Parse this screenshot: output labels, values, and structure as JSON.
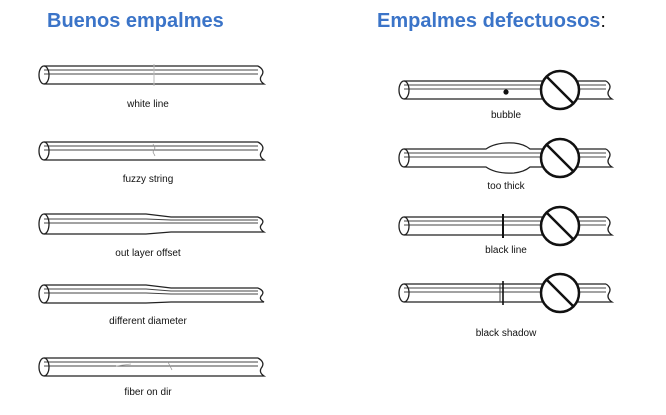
{
  "good": {
    "title": "Buenos empalmes",
    "items": [
      {
        "label": "white line",
        "defect": "white-line"
      },
      {
        "label": "fuzzy string",
        "defect": "fuzzy-string"
      },
      {
        "label": "out layer offset",
        "defect": "out-layer-offset"
      },
      {
        "label": "different diameter",
        "defect": "different-diameter"
      },
      {
        "label": "fiber on dir",
        "defect": "fiber-on-dir"
      }
    ]
  },
  "bad": {
    "title": "Empalmes defectuosos",
    "title_suffix": ":",
    "items": [
      {
        "label": "bubble",
        "defect": "bubble"
      },
      {
        "label": "too thick",
        "defect": "too-thick"
      },
      {
        "label": "black line",
        "defect": "black-line"
      },
      {
        "label": "black shadow",
        "defect": "black-shadow"
      }
    ],
    "marker_icon": "prohibited-icon"
  },
  "colors": {
    "heading": "#3b74c8",
    "line": "#222222"
  }
}
